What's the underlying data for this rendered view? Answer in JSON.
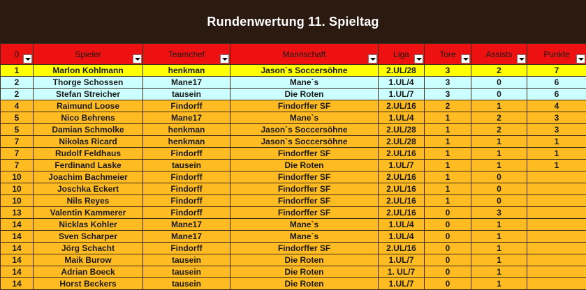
{
  "title": "Rundenwertung 11. Spieltag",
  "columns": [
    "0",
    "Spieler",
    "Teamchef",
    "Mannschaft",
    "Liga",
    "Tore",
    "Assists",
    "Punkte"
  ],
  "colors": {
    "header": "#ee1111",
    "first": "#ffff00",
    "second": "#ccffff",
    "rest": "#ffbb22",
    "title_bg": "#2b1a0f"
  },
  "rows": [
    {
      "rank": "1",
      "player": "Marlon Kohlmann",
      "chef": "henkman",
      "team": "Jason`s Soccersöhne",
      "liga": "2.UL/28",
      "tore": "3",
      "assists": "2",
      "punkte": "7",
      "style": "yellow"
    },
    {
      "rank": "2",
      "player": "Thorge Schossen",
      "chef": "Mane17",
      "team": "Mane`s",
      "liga": "1.UL/4",
      "tore": "3",
      "assists": "0",
      "punkte": "6",
      "style": "cyan"
    },
    {
      "rank": "2",
      "player": "Stefan Streicher",
      "chef": "tausein",
      "team": "Die Roten",
      "liga": "1.UL/7",
      "tore": "3",
      "assists": "0",
      "punkte": "6",
      "style": "cyan"
    },
    {
      "rank": "4",
      "player": "Raimund Loose",
      "chef": "Findorff",
      "team": "Findorffer SF",
      "liga": "2.UL/16",
      "tore": "2",
      "assists": "1",
      "punkte": "4",
      "style": "orange"
    },
    {
      "rank": "5",
      "player": "Nico Behrens",
      "chef": "Mane17",
      "team": "Mane`s",
      "liga": "1.UL/4",
      "tore": "1",
      "assists": "2",
      "punkte": "3",
      "style": "orange"
    },
    {
      "rank": "5",
      "player": "Damian Schmolke",
      "chef": "henkman",
      "team": "Jason`s Soccersöhne",
      "liga": "2.UL/28",
      "tore": "1",
      "assists": "2",
      "punkte": "3",
      "style": "orange"
    },
    {
      "rank": "7",
      "player": "Nikolas Ricard",
      "chef": "henkman",
      "team": "Jason`s Soccersöhne",
      "liga": "2.UL/28",
      "tore": "1",
      "assists": "1",
      "punkte": "1",
      "style": "orange"
    },
    {
      "rank": "7",
      "player": "Rudolf Feldhaus",
      "chef": "Findorff",
      "team": "Findorffer SF",
      "liga": "2.UL/16",
      "tore": "1",
      "assists": "1",
      "punkte": "1",
      "style": "orange"
    },
    {
      "rank": "7",
      "player": "Ferdinand Laske",
      "chef": "tausein",
      "team": "Die Roten",
      "liga": "1.UL/7",
      "tore": "1",
      "assists": "1",
      "punkte": "1",
      "style": "orange"
    },
    {
      "rank": "10",
      "player": "Joachim Bachmeier",
      "chef": "Findorff",
      "team": "Findorffer SF",
      "liga": "2.UL/16",
      "tore": "1",
      "assists": "0",
      "punkte": "",
      "style": "orange"
    },
    {
      "rank": "10",
      "player": "Joschka Eckert",
      "chef": "Findorff",
      "team": "Findorffer SF",
      "liga": "2.UL/16",
      "tore": "1",
      "assists": "0",
      "punkte": "",
      "style": "orange"
    },
    {
      "rank": "10",
      "player": "Nils Reyes",
      "chef": "Findorff",
      "team": "Findorffer SF",
      "liga": "2.UL/16",
      "tore": "1",
      "assists": "0",
      "punkte": "",
      "style": "orange"
    },
    {
      "rank": "13",
      "player": "Valentin Kammerer",
      "chef": "Findorff",
      "team": "Findorffer SF",
      "liga": "2.UL/16",
      "tore": "0",
      "assists": "3",
      "punkte": "",
      "style": "orange"
    },
    {
      "rank": "14",
      "player": "Nicklas Kohler",
      "chef": "Mane17",
      "team": "Mane`s",
      "liga": "1.UL/4",
      "tore": "0",
      "assists": "1",
      "punkte": "",
      "style": "orange"
    },
    {
      "rank": "14",
      "player": "Sven Scharper",
      "chef": "Mane17",
      "team": "Mane`s",
      "liga": "1.UL/4",
      "tore": "0",
      "assists": "1",
      "punkte": "",
      "style": "orange"
    },
    {
      "rank": "14",
      "player": "Jörg Schacht",
      "chef": "Findorff",
      "team": "Findorffer SF",
      "liga": "2.UL/16",
      "tore": "0",
      "assists": "1",
      "punkte": "",
      "style": "orange"
    },
    {
      "rank": "14",
      "player": "Maik Burow",
      "chef": "tausein",
      "team": "Die Roten",
      "liga": "1.UL/7",
      "tore": "0",
      "assists": "1",
      "punkte": "",
      "style": "orange"
    },
    {
      "rank": "14",
      "player": "Adrian Boeck",
      "chef": "tausein",
      "team": "Die Roten",
      "liga": "1. UL/7",
      "tore": "0",
      "assists": "1",
      "punkte": "",
      "style": "orange"
    },
    {
      "rank": "14",
      "player": "Horst Beckers",
      "chef": "tausein",
      "team": "Die Roten",
      "liga": "1.UL/7",
      "tore": "0",
      "assists": "1",
      "punkte": "",
      "style": "orange"
    }
  ]
}
